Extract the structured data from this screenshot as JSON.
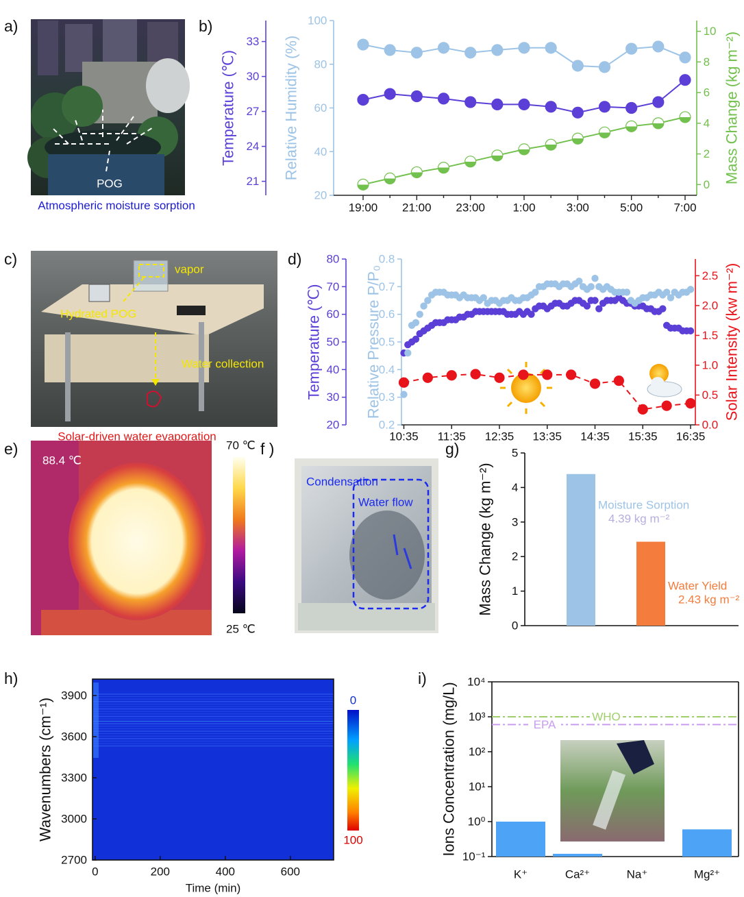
{
  "panels": {
    "a": {
      "label": "a)",
      "tag": "POG",
      "caption": "Atmospheric moisture sorption"
    },
    "c": {
      "label": "c)",
      "vapor": "vapor",
      "hydrated": "Hydrated POG",
      "collection": "Water collection",
      "caption": "Solar-driven water evaporation"
    },
    "e": {
      "label": "e)",
      "temperature": "88.4 ℃",
      "scale_max": "70 ℃",
      "scale_min": "25 ℃"
    },
    "f": {
      "label": "f )",
      "condensation": "Condensation",
      "flow": "Water flow"
    }
  },
  "chart_data": [
    {
      "type": "line",
      "label": "b)",
      "categories": [
        "19:00",
        null,
        "21:00",
        null,
        "23:00",
        null,
        "1:00",
        null,
        "3:00",
        null,
        "5:00",
        null,
        "7:00"
      ],
      "ylabel": "Temperature (℃)",
      "ylim": [
        19.8,
        34.8
      ],
      "yticks": [
        21,
        24,
        27,
        30,
        33
      ],
      "y2label": "Relative Humidity (%)",
      "y2lim": [
        20,
        100
      ],
      "y2ticks": [
        20,
        40,
        60,
        80,
        100
      ],
      "y3label": "Mass Change (kg m⁻²)",
      "y3lim": [
        -0.7,
        10.7
      ],
      "y3ticks": [
        0,
        2,
        4,
        6,
        8,
        10
      ],
      "series": [
        {
          "axis": "y",
          "color": "#5b3fd6",
          "line_style": "solid",
          "marker": "filled",
          "values": [
            28.0,
            28.5,
            28.3,
            28.1,
            27.8,
            27.6,
            27.6,
            27.4,
            26.9,
            27.4,
            27.3,
            27.8,
            29.7
          ]
        },
        {
          "axis": "y2",
          "color": "#9dc3e6",
          "line_style": "solid",
          "marker": "filled",
          "values": [
            89.0,
            86.5,
            85.3,
            87.5,
            85.3,
            86.5,
            87.5,
            87.5,
            79.3,
            78.7,
            87.1,
            88.1,
            83.1
          ]
        },
        {
          "axis": "y3",
          "color": "#72c04d",
          "line_style": "solid",
          "marker": "half",
          "values": [
            0,
            0.4,
            0.8,
            1.1,
            1.5,
            1.9,
            2.3,
            2.6,
            3.0,
            3.4,
            3.8,
            4.0,
            4.4
          ]
        }
      ]
    },
    {
      "type": "line",
      "label": "d)",
      "xlim": [
        632,
        1001
      ],
      "xticks": [
        {
          "value": 635,
          "label": "10:35"
        },
        {
          "value": 695,
          "label": "11:35"
        },
        {
          "value": 755,
          "label": "12:35"
        },
        {
          "value": 815,
          "label": "13:35"
        },
        {
          "value": 875,
          "label": "14:35"
        },
        {
          "value": 935,
          "label": "15:35"
        },
        {
          "value": 995,
          "label": "16:35"
        }
      ],
      "ylabel": "Temperature (℃)",
      "ylim": [
        20,
        80
      ],
      "yticks": [
        20,
        30,
        40,
        50,
        60,
        70,
        80
      ],
      "y2label": "Relative Pressure P/P₀",
      "y2lim": [
        0.2,
        0.8
      ],
      "y2ticks": [
        0.2,
        0.3,
        0.4,
        0.5,
        0.6,
        0.7,
        0.8
      ],
      "y3label": "Solar Intensity (kw m⁻²)",
      "y3lim": [
        0,
        2.78
      ],
      "y3ticks": [
        {
          "value": 0,
          "label": "0.0"
        },
        0.5,
        {
          "value": 1,
          "label": "1.0"
        },
        1.5,
        {
          "value": 2,
          "label": "2.0"
        },
        2.5
      ],
      "series": [
        {
          "axis": "y",
          "color": "#5b3fd6",
          "line_style": "none",
          "marker": "filled",
          "x": [
            635,
            640,
            645,
            650,
            655,
            660,
            665,
            670,
            675,
            680,
            685,
            690,
            695,
            700,
            705,
            710,
            715,
            720,
            725,
            730,
            735,
            740,
            745,
            750,
            755,
            760,
            765,
            770,
            775,
            780,
            785,
            790,
            795,
            800,
            805,
            810,
            815,
            820,
            825,
            830,
            835,
            840,
            845,
            850,
            855,
            860,
            865,
            870,
            875,
            880,
            885,
            890,
            895,
            900,
            905,
            910,
            915,
            920,
            925,
            930,
            935,
            940,
            945,
            950,
            955,
            960,
            965,
            970,
            975,
            980,
            985,
            990,
            995
          ],
          "values": [
            46,
            49,
            50,
            51,
            53,
            54,
            55,
            56,
            57,
            57,
            57,
            58,
            58,
            58,
            59,
            59,
            60,
            60,
            61,
            61,
            61,
            61,
            61,
            61,
            61,
            61,
            60,
            60,
            60,
            61,
            60,
            61,
            60,
            62,
            63,
            63,
            62,
            63,
            64,
            64,
            63,
            63,
            64,
            65,
            65,
            64,
            63,
            65,
            65,
            62,
            64,
            65,
            65,
            65,
            66,
            65,
            64,
            64,
            63,
            63,
            63,
            62,
            62,
            61,
            61,
            62,
            56,
            55,
            55,
            55,
            54,
            54,
            54
          ]
        },
        {
          "axis": "y2",
          "color": "#9dc3e6",
          "line_style": "none",
          "marker": "filled",
          "x": [
            635,
            640,
            645,
            650,
            655,
            660,
            665,
            670,
            675,
            680,
            685,
            690,
            695,
            700,
            705,
            710,
            715,
            720,
            725,
            730,
            735,
            740,
            745,
            750,
            755,
            760,
            765,
            770,
            775,
            780,
            785,
            790,
            795,
            800,
            805,
            810,
            815,
            820,
            825,
            830,
            835,
            840,
            845,
            850,
            855,
            860,
            865,
            870,
            875,
            880,
            885,
            890,
            895,
            900,
            905,
            910,
            915,
            920,
            925,
            930,
            935,
            940,
            945,
            950,
            955,
            960,
            965,
            970,
            975,
            980,
            985,
            990,
            995
          ],
          "values": [
            0.31,
            0.46,
            0.56,
            0.57,
            0.6,
            0.63,
            0.65,
            0.67,
            0.68,
            0.68,
            0.68,
            0.67,
            0.67,
            0.67,
            0.66,
            0.67,
            0.66,
            0.66,
            0.66,
            0.65,
            0.66,
            0.64,
            0.65,
            0.65,
            0.64,
            0.65,
            0.65,
            0.66,
            0.65,
            0.65,
            0.66,
            0.66,
            0.67,
            0.68,
            0.7,
            0.7,
            0.71,
            0.71,
            0.71,
            0.7,
            0.71,
            0.71,
            0.7,
            0.71,
            0.72,
            0.7,
            0.69,
            0.7,
            0.73,
            0.7,
            0.69,
            0.7,
            0.69,
            0.68,
            0.68,
            0.68,
            0.68,
            0.65,
            0.64,
            0.65,
            0.66,
            0.66,
            0.67,
            0.67,
            0.68,
            0.67,
            0.68,
            0.66,
            0.68,
            0.67,
            0.68,
            0.68,
            0.69
          ]
        },
        {
          "axis": "y3",
          "color": "#e8141b",
          "line_style": "dashed",
          "marker": "filled",
          "x": [
            635,
            665,
            695,
            725,
            755,
            785,
            815,
            845,
            875,
            905,
            935,
            965,
            995
          ],
          "values": [
            0.71,
            0.79,
            0.83,
            0.85,
            0.79,
            0.84,
            0.84,
            0.84,
            0.69,
            0.74,
            0.26,
            0.32,
            0.36
          ]
        }
      ]
    },
    {
      "type": "bar",
      "label": "g)",
      "ylabel": "Mass Change (kg m⁻²)",
      "categories": [
        "Moisture Sorption",
        "Water Yield"
      ],
      "values": [
        4.39,
        2.43
      ],
      "value_labels": [
        "4.39 kg m⁻²",
        "2.43 kg m⁻²"
      ],
      "colors": [
        "#9dc3e6",
        "#f47c3c"
      ],
      "ylim": [
        0,
        5
      ],
      "yticks": [
        0,
        1,
        2,
        3,
        4,
        5
      ]
    },
    {
      "type": "heatmap",
      "label": "h)",
      "xlabel": "Time (min)",
      "ylabel": "Wavenumbers (cm⁻¹)",
      "xlim": [
        -8,
        733
      ],
      "xticks": [
        0,
        200,
        400,
        600
      ],
      "ylim": [
        2700,
        4020
      ],
      "yticks": [
        2700,
        3000,
        3300,
        3600,
        3900
      ],
      "clim": [
        0,
        100
      ]
    },
    {
      "type": "bar",
      "label": "i)",
      "ylabel": "Ions Concentration (mg/L)",
      "log": true,
      "categories": [
        "K⁺",
        "Ca²⁺",
        "Na⁺",
        "Mg²⁺"
      ],
      "values": [
        1.0,
        0.12,
        null,
        0.6
      ],
      "color": "#4da3f5",
      "ylim": [
        0.1,
        10000
      ],
      "yticks": [
        {
          "value": 0.1,
          "label": "10⁻¹"
        },
        {
          "value": 1,
          "label": "10⁰"
        },
        {
          "value": 10,
          "label": "10¹"
        },
        {
          "value": 100,
          "label": "10²"
        },
        {
          "value": 1000,
          "label": "10³"
        },
        {
          "value": 10000,
          "label": "10⁴"
        }
      ],
      "reference_lines": [
        {
          "label": "WHO",
          "value": 1000,
          "color": "#9fcf6a"
        },
        {
          "label": "EPA",
          "value": 600,
          "color": "#c99cf0"
        }
      ]
    }
  ]
}
